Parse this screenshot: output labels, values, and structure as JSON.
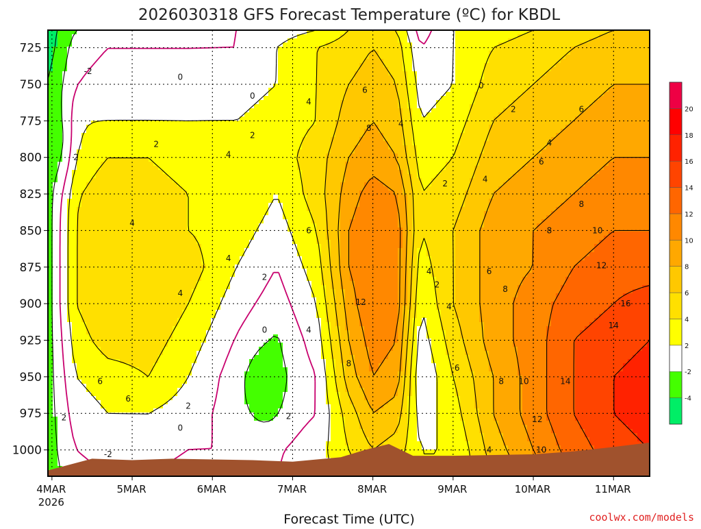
{
  "chart_data": {
    "type": "heatmap",
    "title": "2026030318 GFS Forecast Temperature (ºC) for KBDL",
    "xlabel": "Forecast Time (UTC)",
    "ylabel": "",
    "x_start_label_year": "2026",
    "x_tick_labels": [
      "4MAR",
      "5MAR",
      "6MAR",
      "7MAR",
      "8MAR",
      "9MAR",
      "10MAR",
      "11MAR"
    ],
    "x_tick_days": [
      0,
      1,
      2,
      3,
      4,
      5,
      6,
      7
    ],
    "xlim_days": [
      -0.05,
      7.45
    ],
    "y_tick_labels": [
      "725",
      "750",
      "775",
      "800",
      "825",
      "850",
      "875",
      "900",
      "925",
      "950",
      "975",
      "1000"
    ],
    "y_tick_values": [
      725,
      750,
      775,
      800,
      825,
      850,
      875,
      900,
      925,
      950,
      975,
      1000
    ],
    "ylim_hpa": [
      713,
      1018
    ],
    "colorbar": {
      "levels": [
        -6,
        -4,
        -2,
        2,
        4,
        6,
        8,
        10,
        12,
        14,
        16,
        18,
        20,
        22
      ],
      "tick_labels": [
        "-4",
        "-2",
        "2",
        "4",
        "6",
        "8",
        "10",
        "12",
        "14",
        "16",
        "18",
        "20"
      ],
      "tick_values": [
        -4,
        -2,
        2,
        4,
        6,
        8,
        10,
        12,
        14,
        16,
        18,
        20
      ],
      "colors": [
        "#00ee66",
        "#44ff00",
        "#ffffff",
        "#ffff00",
        "#ffe000",
        "#ffc800",
        "#ffa800",
        "#ff8800",
        "#ff6600",
        "#ff4400",
        "#ff2200",
        "#ff0000",
        "#ee0044"
      ]
    },
    "freezing_line_color": "#c8006e",
    "ground_color": "#a0522d",
    "profile_columns": [
      {
        "day": -0.05,
        "temps": [
          -5,
          -5,
          -4,
          -4,
          -3,
          -3,
          -3,
          -3,
          -3,
          -3,
          -3,
          -3,
          -3,
          -3
        ]
      },
      {
        "day": 0.3,
        "temps": [
          -2,
          -1,
          0,
          2,
          3,
          4,
          4,
          4,
          4,
          3,
          2,
          1,
          0,
          -1
        ]
      },
      {
        "day": 0.7,
        "temps": [
          -1,
          0,
          1,
          2,
          4,
          5,
          6,
          6,
          6,
          5,
          3,
          2,
          1,
          0
        ]
      },
      {
        "day": 1.2,
        "temps": [
          -1,
          0,
          1,
          2,
          4,
          5,
          6,
          6,
          6,
          5,
          4,
          2,
          1,
          0
        ]
      },
      {
        "day": 1.7,
        "temps": [
          -1,
          0,
          1,
          2,
          3,
          4,
          4,
          5,
          4,
          3,
          2,
          1,
          0,
          -1
        ]
      },
      {
        "day": 2.3,
        "temps": [
          0,
          0,
          1,
          2,
          4,
          4,
          3,
          2,
          1,
          0,
          -1,
          -1,
          0,
          -1
        ]
      },
      {
        "day": 2.8,
        "temps": [
          1,
          2,
          2,
          3,
          3,
          2,
          1,
          0,
          -1,
          -2,
          -2,
          -1,
          0,
          0
        ]
      },
      {
        "day": 3.3,
        "temps": [
          2,
          4,
          4,
          4,
          5,
          5,
          4,
          3,
          2,
          1,
          0,
          0,
          1,
          1
        ]
      },
      {
        "day": 3.7,
        "temps": [
          4,
          5,
          6,
          7,
          8,
          9,
          10,
          10,
          9,
          8,
          7,
          5,
          4,
          3
        ]
      },
      {
        "day": 4.0,
        "temps": [
          5,
          6,
          7,
          8,
          9,
          11,
          12,
          12,
          12,
          11,
          10,
          8,
          6,
          5
        ]
      },
      {
        "day": 4.3,
        "temps": [
          4,
          5,
          6,
          7,
          8,
          10,
          11,
          11,
          11,
          10,
          9,
          7,
          5,
          4
        ]
      },
      {
        "day": 4.6,
        "temps": [
          -1,
          0,
          1,
          2,
          3,
          4,
          4,
          3,
          2,
          1,
          0,
          1,
          2,
          2
        ]
      },
      {
        "day": 5.0,
        "temps": [
          2,
          2,
          2,
          3,
          4,
          5,
          6,
          6,
          6,
          5,
          4,
          3,
          2,
          2
        ]
      },
      {
        "day": 5.5,
        "temps": [
          3,
          4,
          5,
          6,
          7,
          8,
          9,
          9,
          9,
          9,
          8,
          8,
          7,
          6
        ]
      },
      {
        "day": 6.0,
        "temps": [
          4,
          5,
          6,
          7,
          8,
          9,
          10,
          10,
          11,
          11,
          11,
          11,
          10,
          9
        ]
      },
      {
        "day": 6.5,
        "temps": [
          5,
          6,
          7,
          8,
          9,
          10,
          11,
          12,
          13,
          14,
          14,
          14,
          13,
          12
        ]
      },
      {
        "day": 7.0,
        "temps": [
          6,
          7,
          8,
          9,
          10,
          11,
          12,
          13,
          14,
          15,
          16,
          16,
          15,
          14
        ]
      },
      {
        "day": 7.45,
        "temps": [
          6,
          7,
          8,
          9,
          10,
          11,
          12,
          13,
          15,
          16,
          17,
          17,
          16,
          15
        ]
      }
    ],
    "profile_pressures": [
      713,
      725,
      750,
      775,
      800,
      825,
      850,
      875,
      900,
      925,
      950,
      975,
      1000,
      1018
    ],
    "surface_pressure": [
      {
        "day": -0.05,
        "p": 1014
      },
      {
        "day": 0.5,
        "p": 1006
      },
      {
        "day": 1.0,
        "p": 1007
      },
      {
        "day": 1.5,
        "p": 1006
      },
      {
        "day": 2.5,
        "p": 1007
      },
      {
        "day": 3.0,
        "p": 1008
      },
      {
        "day": 3.6,
        "p": 1005
      },
      {
        "day": 3.9,
        "p": 1000
      },
      {
        "day": 4.2,
        "p": 996
      },
      {
        "day": 4.5,
        "p": 1004
      },
      {
        "day": 5.0,
        "p": 1004
      },
      {
        "day": 6.0,
        "p": 1003
      },
      {
        "day": 6.5,
        "p": 1001
      },
      {
        "day": 7.0,
        "p": 998
      },
      {
        "day": 7.45,
        "p": 995
      }
    ],
    "cold_pockets": [
      {
        "center_day": 2.65,
        "center_hpa": 958,
        "level": -2
      },
      {
        "center_day": -0.05,
        "center_hpa": 790,
        "level": -2
      }
    ],
    "contour_labels": [
      {
        "text": "2",
        "day": 0.3,
        "hpa": 800
      },
      {
        "text": "4",
        "day": 1.0,
        "hpa": 845
      },
      {
        "text": "6",
        "day": 0.6,
        "hpa": 953
      },
      {
        "text": "6",
        "day": 0.95,
        "hpa": 965
      },
      {
        "text": "2",
        "day": 0.15,
        "hpa": 978
      },
      {
        "text": "-2",
        "day": 0.7,
        "hpa": 1003
      },
      {
        "text": "2",
        "day": 1.7,
        "hpa": 970
      },
      {
        "text": "4",
        "day": 1.6,
        "hpa": 893
      },
      {
        "text": "2",
        "day": 1.3,
        "hpa": 791
      },
      {
        "text": "0",
        "day": 1.6,
        "hpa": 745
      },
      {
        "text": "4",
        "day": 2.2,
        "hpa": 869
      },
      {
        "text": "4",
        "day": 2.2,
        "hpa": 798
      },
      {
        "text": "2",
        "day": 2.5,
        "hpa": 785
      },
      {
        "text": "0",
        "day": 2.5,
        "hpa": 758
      },
      {
        "text": "2",
        "day": 2.65,
        "hpa": 882
      },
      {
        "text": "0",
        "day": 2.65,
        "hpa": 918
      },
      {
        "text": "-2",
        "day": 0.45,
        "hpa": 741
      },
      {
        "text": "0",
        "day": 1.6,
        "hpa": 985
      },
      {
        "text": "2",
        "day": 2.95,
        "hpa": 977
      },
      {
        "text": "4",
        "day": 3.2,
        "hpa": 918
      },
      {
        "text": "4",
        "day": 3.2,
        "hpa": 762
      },
      {
        "text": "6",
        "day": 3.2,
        "hpa": 850
      },
      {
        "text": "6",
        "day": 3.9,
        "hpa": 754
      },
      {
        "text": "8",
        "day": 3.95,
        "hpa": 780
      },
      {
        "text": "8",
        "day": 3.7,
        "hpa": 941
      },
      {
        "text": "12",
        "day": 3.85,
        "hpa": 899
      },
      {
        "text": "4",
        "day": 4.35,
        "hpa": 777
      },
      {
        "text": "2",
        "day": 4.8,
        "hpa": 887
      },
      {
        "text": "4",
        "day": 4.7,
        "hpa": 878
      },
      {
        "text": "4",
        "day": 4.95,
        "hpa": 902
      },
      {
        "text": "2",
        "day": 4.9,
        "hpa": 818
      },
      {
        "text": "6",
        "day": 5.05,
        "hpa": 944
      },
      {
        "text": "0",
        "day": 5.35,
        "hpa": 751
      },
      {
        "text": "2",
        "day": 5.75,
        "hpa": 767
      },
      {
        "text": "4",
        "day": 5.4,
        "hpa": 815
      },
      {
        "text": "6",
        "day": 5.45,
        "hpa": 878
      },
      {
        "text": "8",
        "day": 5.65,
        "hpa": 890
      },
      {
        "text": "4",
        "day": 5.45,
        "hpa": 1000
      },
      {
        "text": "8",
        "day": 5.6,
        "hpa": 953
      },
      {
        "text": "10",
        "day": 5.88,
        "hpa": 953
      },
      {
        "text": "12",
        "day": 6.05,
        "hpa": 979
      },
      {
        "text": "10",
        "day": 6.1,
        "hpa": 1000
      },
      {
        "text": "4",
        "day": 6.2,
        "hpa": 790
      },
      {
        "text": "6",
        "day": 6.1,
        "hpa": 803
      },
      {
        "text": "8",
        "day": 6.2,
        "hpa": 850
      },
      {
        "text": "6",
        "day": 6.6,
        "hpa": 767
      },
      {
        "text": "8",
        "day": 6.6,
        "hpa": 832
      },
      {
        "text": "10",
        "day": 6.8,
        "hpa": 850
      },
      {
        "text": "12",
        "day": 6.85,
        "hpa": 874
      },
      {
        "text": "14",
        "day": 6.4,
        "hpa": 953
      },
      {
        "text": "16",
        "day": 7.15,
        "hpa": 900
      },
      {
        "text": "14",
        "day": 7.0,
        "hpa": 915
      }
    ]
  },
  "credit": "coolwx.com/models"
}
